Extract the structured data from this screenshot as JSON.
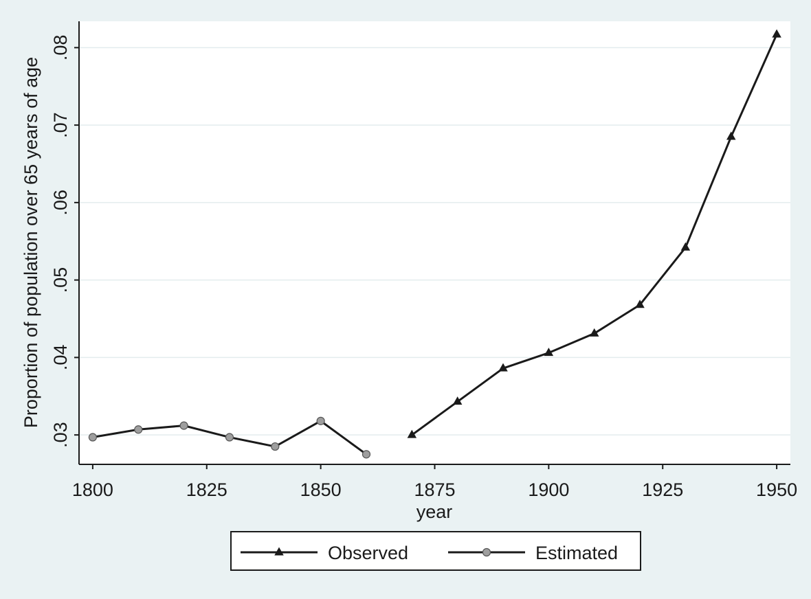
{
  "chart_data": {
    "type": "line",
    "title": "",
    "xlabel": "year",
    "ylabel": "Proportion of population over 65 years of age",
    "xlim": [
      1797,
      1953
    ],
    "ylim": [
      0.0262,
      0.0834
    ],
    "x_ticks": [
      1800,
      1825,
      1850,
      1875,
      1900,
      1925,
      1950
    ],
    "x_tick_labels": [
      "1800",
      "1825",
      "1850",
      "1875",
      "1900",
      "1925",
      "1950"
    ],
    "y_ticks": [
      0.03,
      0.04,
      0.05,
      0.06,
      0.07,
      0.08
    ],
    "y_tick_labels": [
      ".03",
      ".04",
      ".05",
      ".06",
      ".07",
      ".08"
    ],
    "grid": true,
    "legend_position": "bottom",
    "colors": {
      "background": "#eaf2f3",
      "plot": "#ffffff",
      "grid": "#e3ecee",
      "line": "#1a1a1a",
      "estimated_marker": "#9e9e9e"
    },
    "series": [
      {
        "name": "Observed",
        "marker": "triangle",
        "x": [
          1870,
          1880,
          1890,
          1900,
          1910,
          1920,
          1930,
          1940,
          1950
        ],
        "y": [
          0.03,
          0.0343,
          0.0386,
          0.0406,
          0.0431,
          0.0468,
          0.0542,
          0.0685,
          0.0817
        ]
      },
      {
        "name": "Estimated",
        "marker": "circle",
        "x": [
          1800,
          1810,
          1820,
          1830,
          1840,
          1850,
          1860
        ],
        "y": [
          0.0297,
          0.0307,
          0.0312,
          0.0297,
          0.0285,
          0.0318,
          0.0275
        ]
      }
    ]
  }
}
